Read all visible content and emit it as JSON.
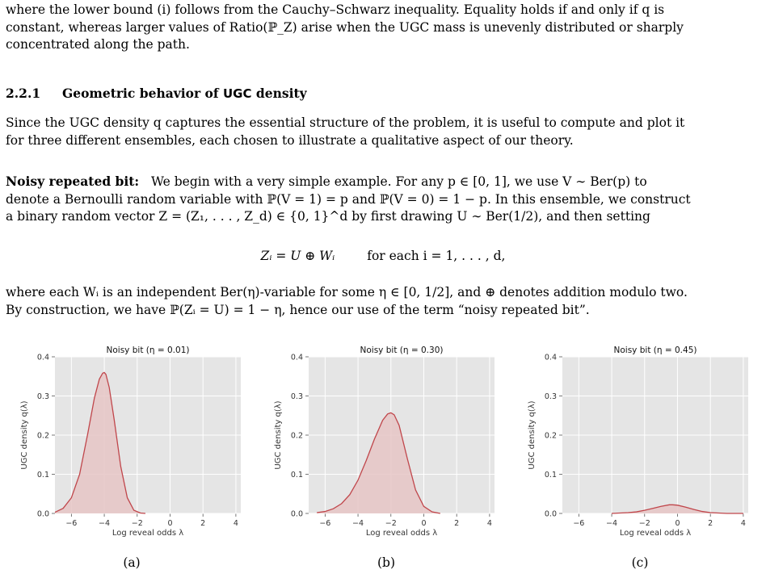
{
  "intro": {
    "lines": [
      "where the lower bound (i) follows from the Cauchy–Schwarz inequality. Equality holds if and only if q is",
      "constant, whereas larger values of Ratio(ℙ_Z) arise when the UGC mass is unevenly distributed or sharply",
      "concentrated along the path."
    ]
  },
  "section": {
    "number": "2.2.1",
    "title_prefix": "Geometric behavior of ",
    "title_sf": "UGC",
    "title_suffix": " density"
  },
  "section_para": {
    "lines": [
      "Since the UGC density q captures the essential structure of the problem, it is useful to compute and plot it",
      "for three different ensembles, each chosen to illustrate a qualitative aspect of our theory."
    ]
  },
  "noisy": {
    "label": "Noisy repeated bit:",
    "lines": [
      "We begin with a very simple example. For any p ∈ [0, 1], we use V ∼ Ber(p) to",
      "denote a Bernoulli random variable with ℙ(V = 1) = p and ℙ(V = 0) = 1 − p. In this ensemble, we construct",
      "a binary random vector Z = (Z₁, . . . , Z_d) ∈ {0, 1}^d by first drawing U ∼ Ber(1/2), and then setting"
    ]
  },
  "equation": {
    "lhs": "Zᵢ = U ⊕ Wᵢ",
    "rhs": "for each i = 1, . . . , d,"
  },
  "after_eq": {
    "lines": [
      "where each Wᵢ is an independent Ber(η)-variable for some η ∈ [0, 1/2], and ⊕ denotes addition modulo two.",
      "By construction, we have ℙ(Zᵢ = U) = 1 − η, hence our use of the term “noisy repeated bit”."
    ]
  },
  "figure": {
    "ylabel": "UGC density q(λ)",
    "xlabel": "Log reveal odds λ",
    "colors": {
      "curve": "#c0464b",
      "fill": "#e6c5c6",
      "bg": "#e5e5e5",
      "grid": "#ffffff",
      "tick": "#555555"
    }
  },
  "chart_data": [
    {
      "type": "area",
      "title": "Noisy bit (η = 0.01)",
      "caption": "(a)",
      "xlabel": "Log reveal odds λ",
      "ylabel": "UGC density q(λ)",
      "xlim": [
        -7,
        4.3
      ],
      "ylim": [
        0,
        0.4
      ],
      "xticks": [
        -6,
        -4,
        -2,
        0,
        2,
        4
      ],
      "xtick_labels": [
        "−6",
        "−4",
        "−2",
        "0",
        "2",
        "4"
      ],
      "yticks": [
        0.0,
        0.1,
        0.2,
        0.3,
        0.4
      ],
      "ytick_labels": [
        "0.0",
        "0.1",
        "0.2",
        "0.3",
        "0.4"
      ],
      "grid": true,
      "x": [
        -7.0,
        -6.5,
        -6.0,
        -5.5,
        -5.0,
        -4.6,
        -4.3,
        -4.1,
        -4.0,
        -3.9,
        -3.7,
        -3.4,
        -3.0,
        -2.6,
        -2.2,
        -1.8,
        -1.5
      ],
      "y": [
        0.003,
        0.013,
        0.04,
        0.1,
        0.205,
        0.295,
        0.343,
        0.358,
        0.36,
        0.355,
        0.322,
        0.24,
        0.12,
        0.04,
        0.008,
        0.001,
        0.0
      ]
    },
    {
      "type": "area",
      "title": "Noisy bit (η = 0.30)",
      "caption": "(b)",
      "xlabel": "Log reveal odds λ",
      "ylabel": "UGC density q(λ)",
      "xlim": [
        -7,
        4.3
      ],
      "ylim": [
        0,
        0.4
      ],
      "xticks": [
        -6,
        -4,
        -2,
        0,
        2,
        4
      ],
      "xtick_labels": [
        "−6",
        "−4",
        "−2",
        "0",
        "2",
        "4"
      ],
      "yticks": [
        0.0,
        0.1,
        0.2,
        0.3,
        0.4
      ],
      "ytick_labels": [
        "0.0",
        "0.1",
        "0.2",
        "0.3",
        "0.4"
      ],
      "grid": true,
      "x": [
        -6.5,
        -6.0,
        -5.5,
        -5.0,
        -4.5,
        -4.0,
        -3.5,
        -3.0,
        -2.5,
        -2.2,
        -2.0,
        -1.8,
        -1.5,
        -1.0,
        -0.5,
        0.0,
        0.5,
        1.0
      ],
      "y": [
        0.002,
        0.005,
        0.012,
        0.025,
        0.048,
        0.085,
        0.135,
        0.19,
        0.238,
        0.254,
        0.257,
        0.252,
        0.225,
        0.14,
        0.06,
        0.018,
        0.004,
        0.0
      ]
    },
    {
      "type": "area",
      "title": "Noisy bit (η = 0.45)",
      "caption": "(c)",
      "xlabel": "Log reveal odds λ",
      "ylabel": "UGC density q(λ)",
      "xlim": [
        -7,
        4.3
      ],
      "ylim": [
        0,
        0.4
      ],
      "xticks": [
        -6,
        -4,
        -2,
        0,
        2,
        4
      ],
      "xtick_labels": [
        "−6",
        "−4",
        "−2",
        "0",
        "2",
        "4"
      ],
      "yticks": [
        0.0,
        0.1,
        0.2,
        0.3,
        0.4
      ],
      "ytick_labels": [
        "0.0",
        "0.1",
        "0.2",
        "0.3",
        "0.4"
      ],
      "grid": true,
      "x": [
        -4.0,
        -3.5,
        -3.0,
        -2.5,
        -2.0,
        -1.5,
        -1.0,
        -0.5,
        -0.3,
        0.0,
        0.5,
        1.0,
        1.5,
        2.0,
        2.5,
        3.0,
        4.0
      ],
      "y": [
        0.0,
        0.001,
        0.002,
        0.004,
        0.008,
        0.013,
        0.018,
        0.022,
        0.022,
        0.021,
        0.016,
        0.01,
        0.005,
        0.002,
        0.001,
        0.0,
        0.0
      ]
    }
  ]
}
